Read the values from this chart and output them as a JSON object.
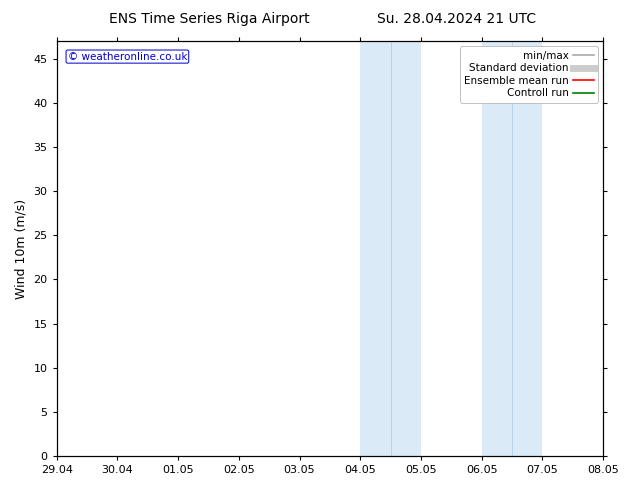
{
  "title_left": "ENS Time Series Riga Airport",
  "title_right": "Su. 28.04.2024 21 UTC",
  "ylabel": "Wind 10m (m/s)",
  "xlabel_ticks": [
    "29.04",
    "30.04",
    "01.05",
    "02.05",
    "03.05",
    "04.05",
    "05.05",
    "06.05",
    "07.05",
    "08.05"
  ],
  "xlim_min": 0,
  "xlim_max": 9,
  "ylim_min": 0,
  "ylim_max": 47,
  "yticks": [
    0,
    5,
    10,
    15,
    20,
    25,
    30,
    35,
    40,
    45
  ],
  "shaded_bands": [
    {
      "x_start": 5.0,
      "x_end": 5.5,
      "color": "#daeaf7"
    },
    {
      "x_start": 5.5,
      "x_end": 6.0,
      "color": "#daeaf7"
    },
    {
      "x_start": 7.0,
      "x_end": 7.5,
      "color": "#daeaf7"
    },
    {
      "x_start": 7.5,
      "x_end": 8.0,
      "color": "#daeaf7"
    }
  ],
  "band_divider_color": "#b8d4e8",
  "background_color": "#ffffff",
  "watermark_text": "© weatheronline.co.uk",
  "watermark_color": "#0000cc",
  "legend_items": [
    {
      "label": "min/max",
      "color": "#aaaaaa",
      "lw": 1.2,
      "style": "solid"
    },
    {
      "label": "Standard deviation",
      "color": "#cccccc",
      "lw": 5,
      "style": "solid"
    },
    {
      "label": "Ensemble mean run",
      "color": "#ff0000",
      "lw": 1.2,
      "style": "solid"
    },
    {
      "label": "Controll run",
      "color": "#008000",
      "lw": 1.2,
      "style": "solid"
    }
  ],
  "tick_label_fontsize": 8,
  "axis_label_fontsize": 9,
  "title_fontsize": 10
}
